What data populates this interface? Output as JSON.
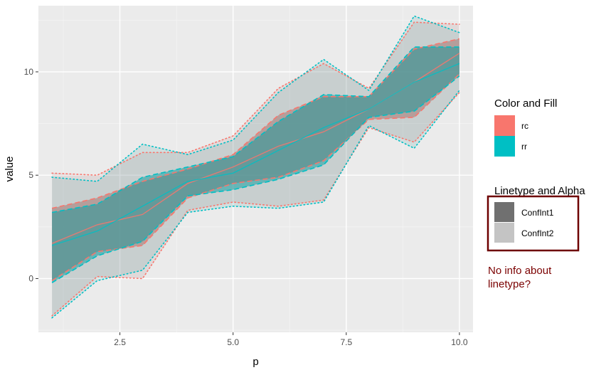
{
  "chart_data": {
    "type": "line",
    "xlabel": "p",
    "ylabel": "value",
    "xlim": [
      0.7,
      10.3
    ],
    "ylim": [
      -2.6,
      13.2
    ],
    "x_ticks": [
      2.5,
      5.0,
      7.5,
      10.0
    ],
    "x_tick_labels": [
      "2.5",
      "5.0",
      "7.5",
      "10.0"
    ],
    "y_ticks": [
      0,
      5,
      10
    ],
    "y_tick_labels": [
      "0",
      "5",
      "10"
    ],
    "grid": true,
    "x": [
      1,
      2,
      3,
      4,
      5,
      6,
      7,
      8,
      9,
      10
    ],
    "series": [
      {
        "name": "rc",
        "color": "#f8766d",
        "mean": [
          1.7,
          2.6,
          3.1,
          4.6,
          5.4,
          6.4,
          7.1,
          8.2,
          9.5,
          10.9
        ],
        "ConfInt1": {
          "lower": [
            -0.1,
            1.3,
            1.6,
            3.9,
            4.6,
            4.9,
            5.7,
            7.7,
            7.8,
            9.9
          ],
          "upper": [
            3.4,
            3.9,
            4.7,
            5.3,
            6.0,
            7.9,
            8.8,
            8.8,
            11.1,
            11.6
          ]
        },
        "ConfInt2": {
          "lower": [
            -1.8,
            0.1,
            0.0,
            3.3,
            3.7,
            3.5,
            3.8,
            7.3,
            6.6,
            9.0
          ],
          "upper": [
            5.1,
            5.0,
            6.1,
            6.1,
            6.9,
            9.2,
            10.4,
            9.2,
            12.4,
            12.3
          ]
        }
      },
      {
        "name": "rr",
        "color": "#00bfc4",
        "mean": [
          1.6,
          2.3,
          3.5,
          4.7,
          5.1,
          6.2,
          7.3,
          8.2,
          9.5,
          10.4
        ],
        "ConfInt1": {
          "lower": [
            -0.2,
            1.1,
            1.8,
            4.0,
            4.3,
            4.8,
            5.5,
            7.8,
            8.1,
            9.8
          ],
          "upper": [
            3.2,
            3.6,
            4.9,
            5.4,
            5.9,
            7.6,
            8.9,
            8.8,
            11.2,
            11.2
          ]
        },
        "ConfInt2": {
          "lower": [
            -1.9,
            -0.1,
            0.4,
            3.2,
            3.5,
            3.4,
            3.7,
            7.4,
            6.3,
            9.1
          ],
          "upper": [
            4.9,
            4.7,
            6.5,
            6.0,
            6.7,
            9.0,
            10.6,
            9.1,
            12.7,
            11.9
          ]
        }
      }
    ],
    "legends": [
      {
        "title": "Color and Fill",
        "entries": [
          {
            "label": "rc",
            "color": "#f8766d"
          },
          {
            "label": "rr",
            "color": "#00bfc4"
          }
        ]
      },
      {
        "title": "Linetype and Alpha",
        "entries": [
          {
            "label": "ConfInt1",
            "color": "#707070"
          },
          {
            "label": "ConfInt2",
            "color": "#c4c4c4"
          }
        ]
      }
    ],
    "annotation": {
      "lines": [
        "No info about",
        "linetype?"
      ],
      "color": "#7b0000"
    }
  }
}
